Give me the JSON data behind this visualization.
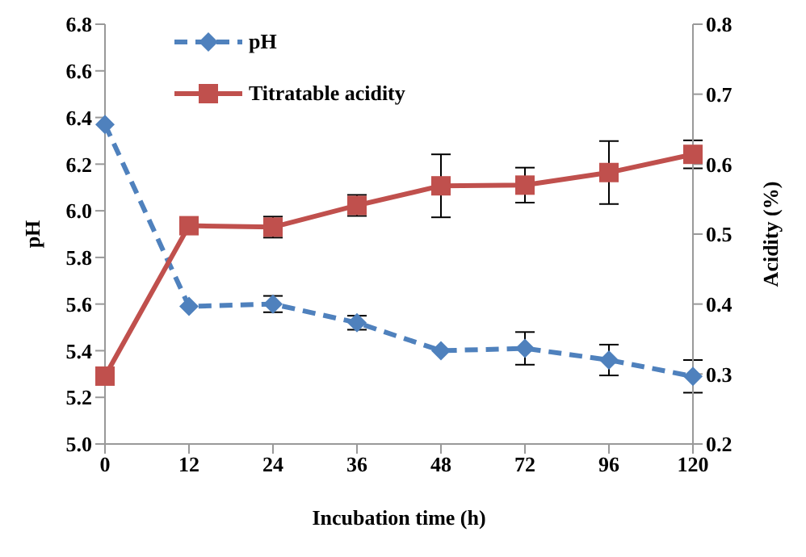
{
  "chart_data": {
    "type": "line",
    "xlabel": "Incubation time (h)",
    "ylabel": "pH",
    "y2label": "Acidity (%)",
    "categories": [
      "0",
      "12",
      "24",
      "36",
      "48",
      "72",
      "96",
      "120"
    ],
    "series": [
      {
        "name": "pH",
        "color": "#4f81bd",
        "marker": "diamond",
        "line_style": "dashed",
        "values": [
          6.37,
          5.59,
          5.6,
          5.52,
          5.4,
          5.41,
          5.36,
          5.29
        ],
        "errors": [
          null,
          null,
          0.035,
          0.03,
          null,
          0.07,
          0.066,
          0.07
        ]
      },
      {
        "name": "Titratable acidity",
        "color": "#c0504d",
        "marker": "square",
        "line_style": "solid",
        "axis": "y2",
        "values": [
          0.297,
          0.512,
          0.51,
          0.541,
          0.569,
          0.57,
          0.588,
          0.614
        ],
        "errors": [
          null,
          null,
          0.015,
          0.015,
          0.045,
          0.025,
          0.045,
          0.02
        ]
      }
    ],
    "ylim": [
      5.0,
      6.8
    ],
    "yticks": [
      {
        "value": 5.0,
        "label": "5.0"
      },
      {
        "value": 5.2,
        "label": "5.2"
      },
      {
        "value": 5.4,
        "label": "5.4"
      },
      {
        "value": 5.6,
        "label": "5.6"
      },
      {
        "value": 5.8,
        "label": "5.8"
      },
      {
        "value": 6.0,
        "label": "6.0"
      },
      {
        "value": 6.2,
        "label": "6.2"
      },
      {
        "value": 6.4,
        "label": "6.4"
      },
      {
        "value": 6.6,
        "label": "6.6"
      },
      {
        "value": 6.8,
        "label": "6.8"
      }
    ],
    "y2lim": [
      0.2,
      0.8
    ],
    "y2ticks": [
      0.2,
      0.3,
      0.4,
      0.5,
      0.6,
      0.7,
      0.8
    ],
    "grid": false,
    "legend": "top left"
  }
}
